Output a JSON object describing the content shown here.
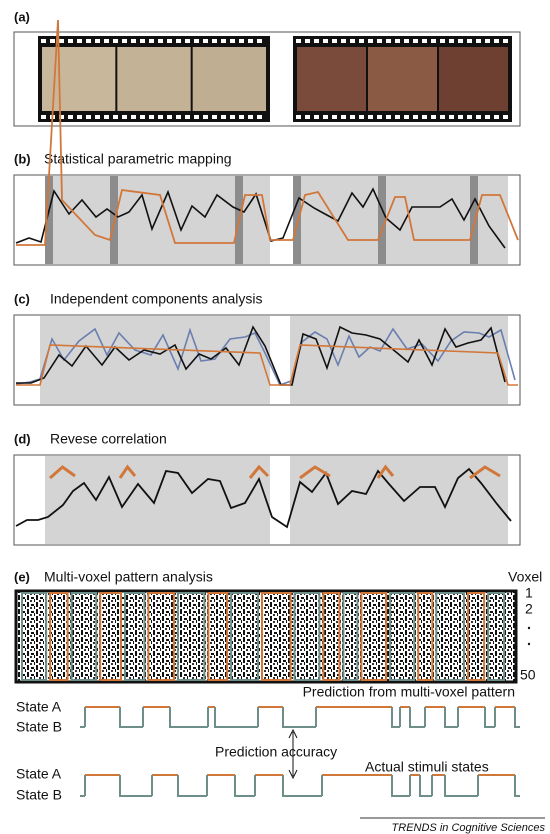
{
  "panels": [
    {
      "label": "(a)"
    },
    {
      "label": "(b)",
      "title": "Statistical parametric mapping"
    },
    {
      "label": "(c)",
      "title": "Independent components analysis"
    },
    {
      "label": "(d)",
      "title": "Revese correlation"
    },
    {
      "label": "(e)",
      "title": "Multi-voxel pattern analysis"
    }
  ],
  "voxel_axis": {
    "title": "Voxel",
    "first": "1",
    "second": "2",
    "last": "50"
  },
  "prediction": {
    "state_a": "State A",
    "state_b": "State B",
    "title": "Prediction from multi-voxel pattern"
  },
  "accuracy": "Prediction accuracy",
  "actual": {
    "state_a": "State A",
    "state_b": "State B",
    "title": "Actual stimuli states"
  },
  "credit": "TRENDS in Cognitive Sciences"
}
